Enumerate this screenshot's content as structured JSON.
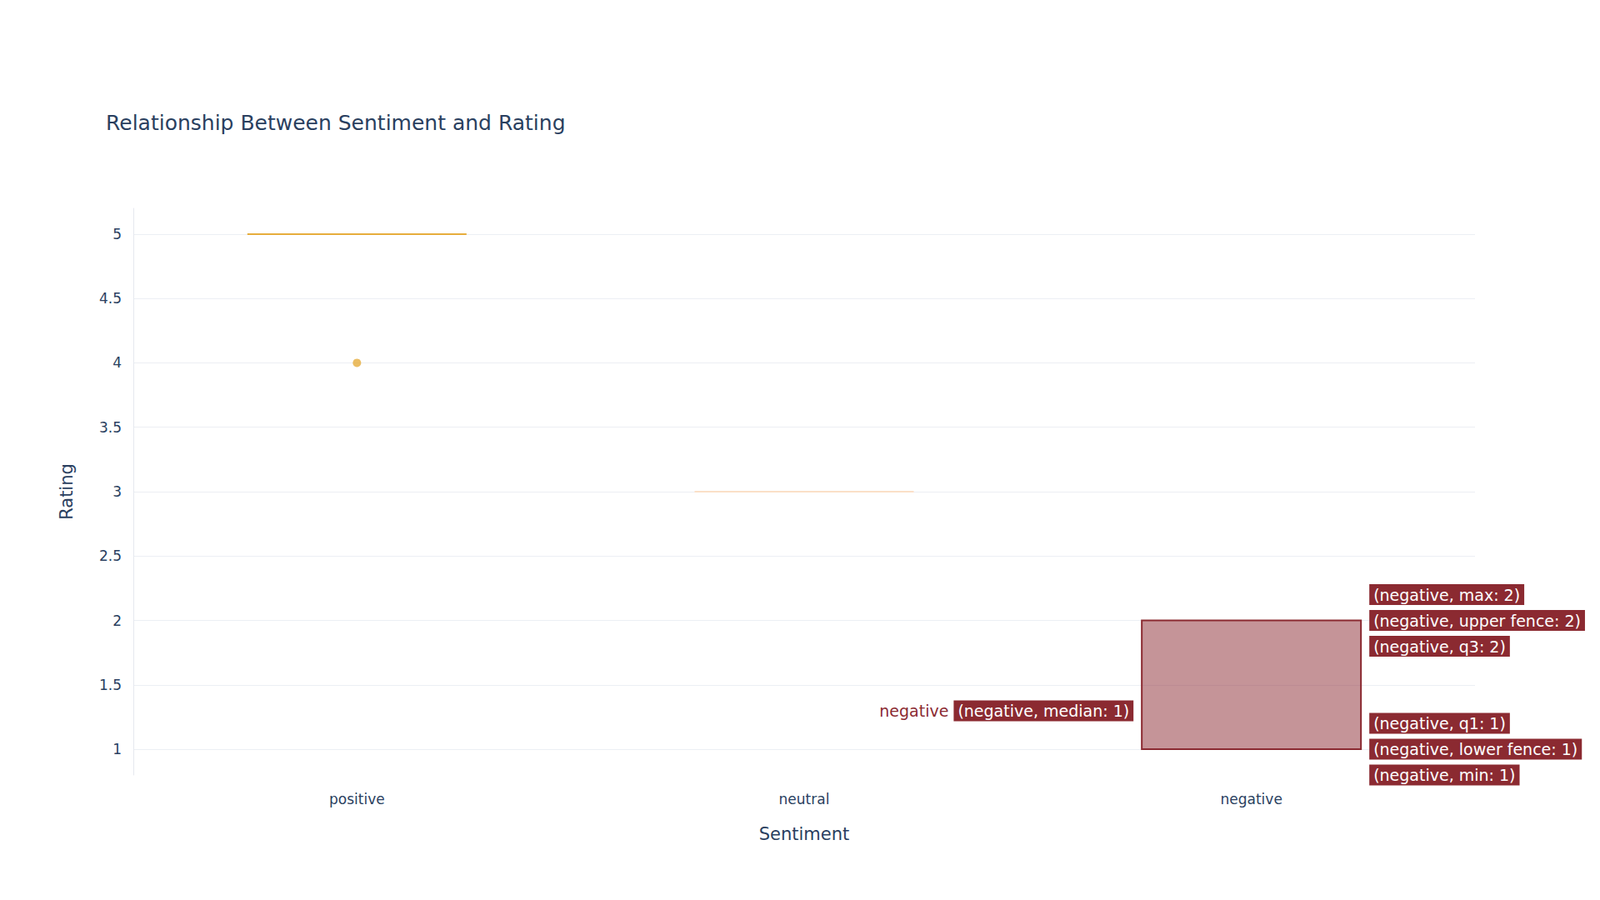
{
  "chart_data": {
    "type": "box",
    "title": "Relationship Between Sentiment and Rating",
    "x_label": "Sentiment",
    "y_label": "Rating",
    "categories": [
      "positive",
      "neutral",
      "negative"
    ],
    "series": [
      {
        "name": "positive",
        "color": "#e6ad3c",
        "min": 5,
        "q1": 5,
        "median": 5,
        "q3": 5,
        "max": 5,
        "outliers": [
          4
        ]
      },
      {
        "name": "neutral",
        "color": "#fbe0c8",
        "min": 3,
        "q1": 3,
        "median": 3,
        "q3": 3,
        "max": 3,
        "outliers": []
      },
      {
        "name": "negative",
        "color": "#8b2a31",
        "min": 1,
        "q1": 1,
        "median": 1,
        "q3": 2,
        "max": 2,
        "outliers": []
      }
    ],
    "ylim": [
      0.8,
      5.2
    ],
    "yticks": [
      1,
      1.5,
      2,
      2.5,
      3,
      3.5,
      4,
      4.5,
      5
    ],
    "grid": true,
    "hover": {
      "series": "negative",
      "name_label": "negative",
      "left": [
        {
          "text": "(negative, median: 1)",
          "value": 1
        }
      ],
      "right": [
        {
          "text": "(negative, max: 2)",
          "value": 2
        },
        {
          "text": "(negative, upper fence: 2)",
          "value": 2
        },
        {
          "text": "(negative, q3: 2)",
          "value": 2
        },
        {
          "text": "(negative, q1: 1)",
          "value": 1
        },
        {
          "text": "(negative, lower fence: 1)",
          "value": 1
        },
        {
          "text": "(negative, min: 1)",
          "value": 1
        }
      ]
    }
  }
}
